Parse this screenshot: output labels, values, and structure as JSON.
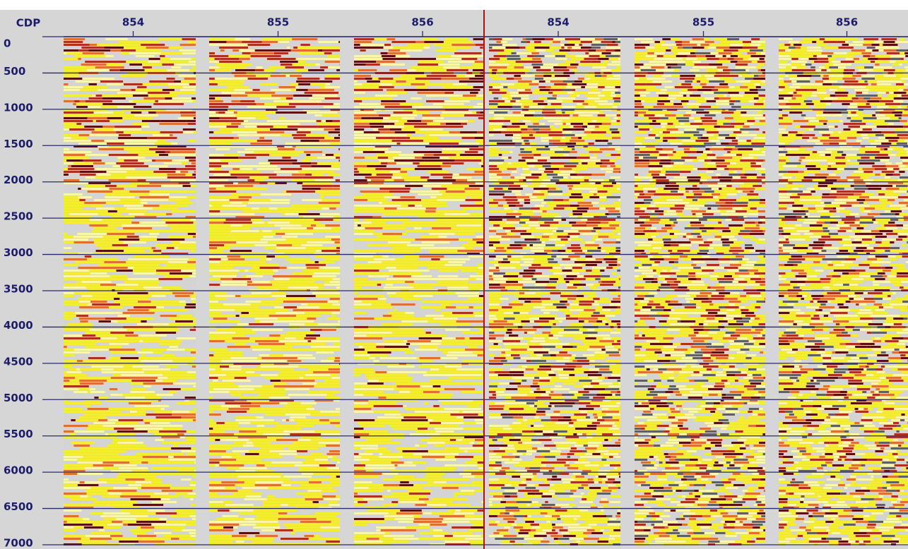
{
  "header_label": "CDP",
  "panels": [
    {
      "cdp_labels": [
        "854",
        "855",
        "856"
      ]
    },
    {
      "cdp_labels": [
        "854",
        "855",
        "856"
      ]
    }
  ],
  "time_axis": {
    "lim": [
      0,
      7000
    ],
    "ticks": [
      0,
      500,
      1000,
      1500,
      2000,
      2500,
      3000,
      3500,
      4000,
      4500,
      5000,
      5500,
      6000,
      6500,
      7000
    ]
  }
}
